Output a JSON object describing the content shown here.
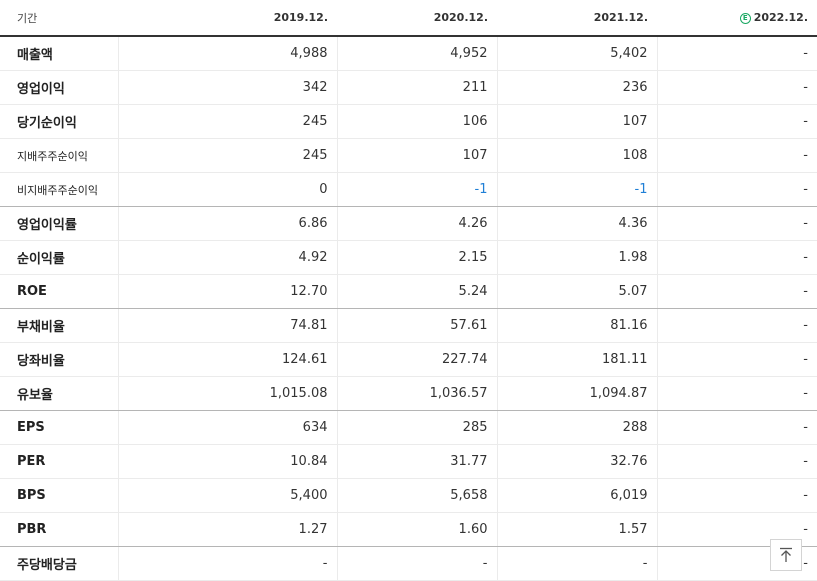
{
  "header": {
    "label": "기간",
    "periods": [
      "2019.12.",
      "2020.12.",
      "2021.12.",
      "2022.12."
    ],
    "estimate_badge": "E",
    "accent_color": "#1aa863"
  },
  "rows": [
    {
      "label": "매출액",
      "values": [
        "4,988",
        "4,952",
        "5,402",
        "-"
      ]
    },
    {
      "label": "영업이익",
      "values": [
        "342",
        "211",
        "236",
        "-"
      ]
    },
    {
      "label": "당기순이익",
      "values": [
        "245",
        "106",
        "107",
        "-"
      ]
    },
    {
      "label": "지배주주순이익",
      "values": [
        "245",
        "107",
        "108",
        "-"
      ]
    },
    {
      "label": "비지배주주순이익",
      "values": [
        "0",
        "-1",
        "-1",
        "-"
      ]
    },
    {
      "label": "영업이익률",
      "values": [
        "6.86",
        "4.26",
        "4.36",
        "-"
      ]
    },
    {
      "label": "순이익률",
      "values": [
        "4.92",
        "2.15",
        "1.98",
        "-"
      ]
    },
    {
      "label": "ROE",
      "values": [
        "12.70",
        "5.24",
        "5.07",
        "-"
      ]
    },
    {
      "label": "부채비율",
      "values": [
        "74.81",
        "57.61",
        "81.16",
        "-"
      ]
    },
    {
      "label": "당좌비율",
      "values": [
        "124.61",
        "227.74",
        "181.11",
        "-"
      ]
    },
    {
      "label": "유보율",
      "values": [
        "1,015.08",
        "1,036.57",
        "1,094.87",
        "-"
      ]
    },
    {
      "label": "EPS",
      "values": [
        "634",
        "285",
        "288",
        "-"
      ]
    },
    {
      "label": "PER",
      "values": [
        "10.84",
        "31.77",
        "32.76",
        "-"
      ]
    },
    {
      "label": "BPS",
      "values": [
        "5,400",
        "5,658",
        "6,019",
        "-"
      ]
    },
    {
      "label": "PBR",
      "values": [
        "1.27",
        "1.60",
        "1.57",
        "-"
      ]
    },
    {
      "label": "주당배당금",
      "values": [
        "-",
        "-",
        "-",
        "-"
      ]
    }
  ],
  "negative_color": "#1f7fd6",
  "scroll_top_icon": "arrow-up-to-top-icon"
}
